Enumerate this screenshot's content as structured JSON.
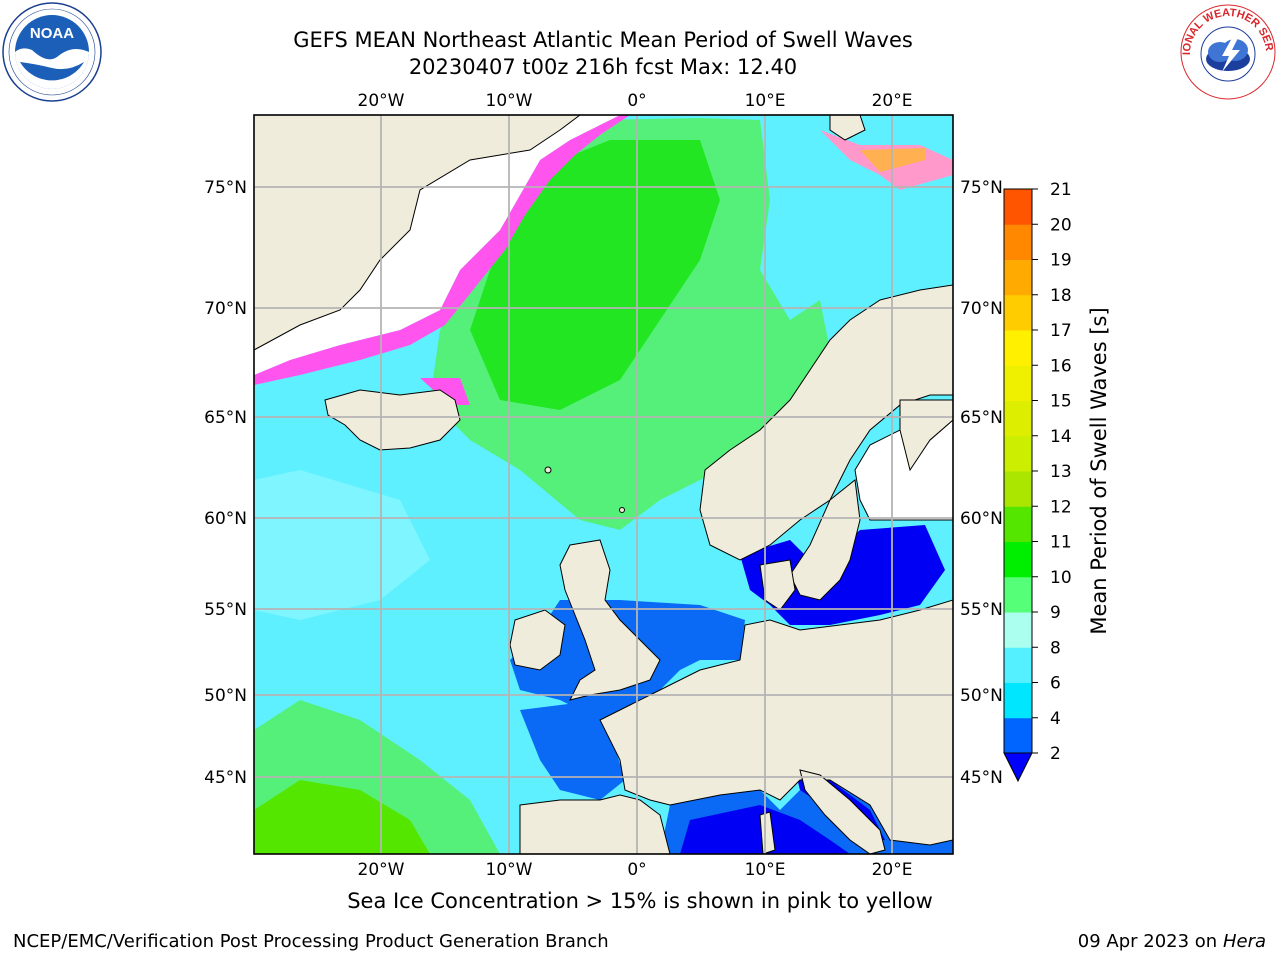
{
  "header": {
    "title_line1": "GEFS MEAN Northeast Atlantic Mean Period of Swell Waves",
    "title_line2": "20230407 t00z 216h fcst   Max: 12.40"
  },
  "logos": {
    "noaa": {
      "text": "NOAA",
      "ring_text": "NATIONAL OCEANIC AND ATMOSPHERIC ADMINISTRATION · U.S. DEPARTMENT OF COMMERCE"
    },
    "nws": {
      "ring_text": "NATIONAL WEATHER SERVICE"
    }
  },
  "map": {
    "lon_labels_top": [
      "20°W",
      "10°W",
      "0°",
      "10°E",
      "20°E"
    ],
    "lon_labels_bottom": [
      "20°W",
      "10°W",
      "0°",
      "10°E",
      "20°E"
    ],
    "lat_labels_left": [
      "75°N",
      "70°N",
      "65°N",
      "60°N",
      "55°N",
      "50°N",
      "45°N"
    ],
    "lat_labels_right": [
      "75°N",
      "70°N",
      "65°N",
      "60°N",
      "55°N",
      "50°N",
      "45°N"
    ],
    "colors": {
      "land": "#efecdc",
      "ocean_base": "#5ff0ff",
      "grid": "#b4b4b4"
    }
  },
  "colorbar": {
    "label": "Mean Period of Swell Waves [s]",
    "ticks": [
      "2",
      "4",
      "6",
      "8",
      "9",
      "10",
      "11",
      "12",
      "13",
      "14",
      "15",
      "16",
      "17",
      "18",
      "19",
      "20",
      "21"
    ],
    "colors": [
      "#0064ff",
      "#00e6ff",
      "#55f0ff",
      "#aaffee",
      "#55ff77",
      "#00ee00",
      "#55e600",
      "#aae600",
      "#ccee00",
      "#ddee00",
      "#eef000",
      "#fff000",
      "#ffcc00",
      "#ffaa00",
      "#ff8800",
      "#ff5500",
      "#ff2200"
    ],
    "under_color": "#0000ff"
  },
  "note": "Sea Ice Concentration > 15% is shown in pink to yellow",
  "footer": {
    "left": "NCEP/EMC/Verification Post Processing Product Generation Branch",
    "date": "09 Apr 2023 on",
    "machine": "Hera"
  }
}
